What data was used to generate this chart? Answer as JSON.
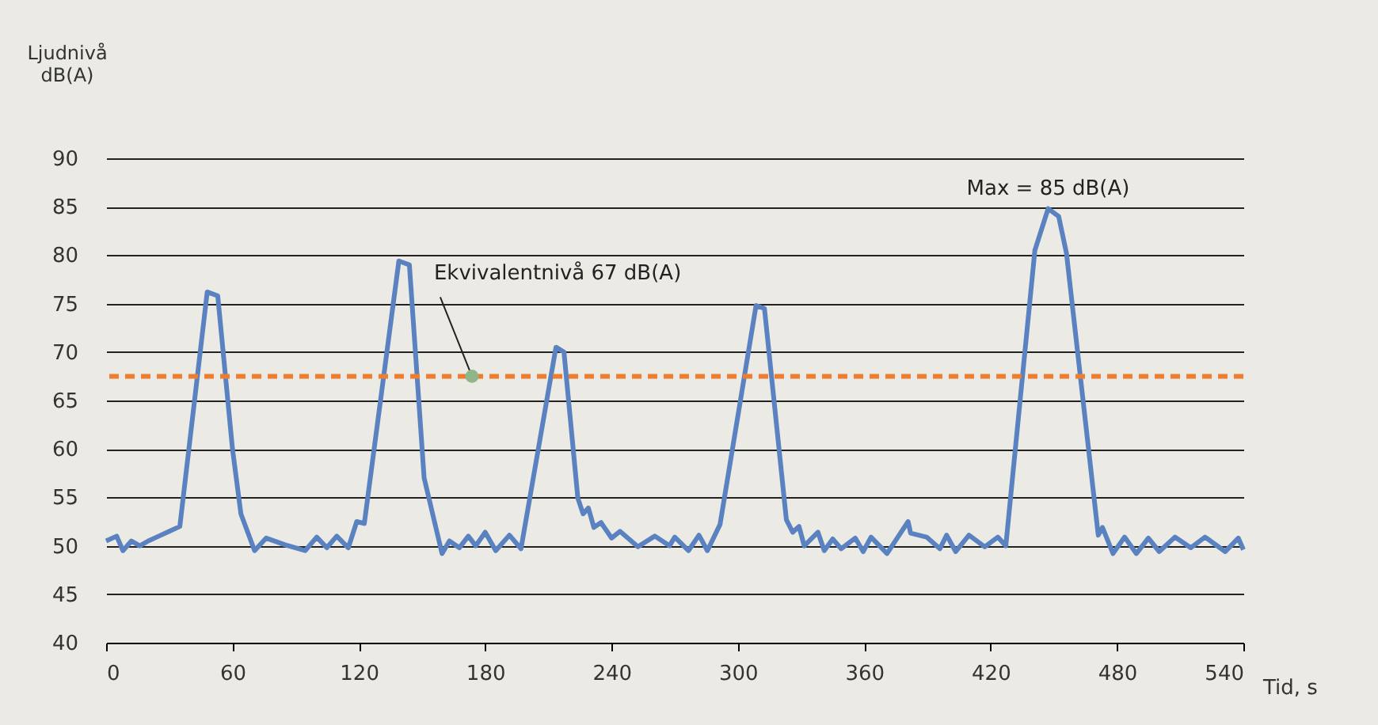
{
  "chart_data": {
    "type": "line",
    "ylabel": "Ljudnivå\ndB(A)",
    "xlabel": "Tid, s",
    "x": [
      0,
      5,
      8,
      12,
      16,
      20,
      25,
      30,
      35,
      48,
      53,
      60,
      64,
      70.5,
      76,
      85,
      94.5,
      100,
      104.8,
      109.5,
      115,
      119,
      122.6,
      139,
      144,
      151,
      159.5,
      163,
      167.7,
      172,
      175.5,
      180,
      185,
      191.5,
      197,
      213.6,
      217.4,
      224,
      226.5,
      229,
      231.6,
      235,
      240,
      244,
      252.5,
      260.5,
      267.5,
      270,
      276.5,
      281.5,
      285.5,
      291.5,
      308.6,
      312.6,
      323,
      326,
      329,
      331.5,
      338,
      341,
      345,
      349,
      355.7,
      359.5,
      363.2,
      370.8,
      380.8,
      382,
      389.6,
      395.9,
      399.1,
      403.4,
      409.7,
      417.2,
      423.4,
      427.2,
      441,
      447.3,
      452.3,
      456,
      471.1,
      473.1,
      478.1,
      483.6,
      489.2,
      494.9,
      500,
      507.5,
      515,
      521.8,
      531.4,
      537.6,
      540
    ],
    "series": [
      {
        "color": "#5b82c0",
        "values": [
          50.5,
          51,
          49.5,
          50.5,
          50,
          50.5,
          51,
          51.5,
          52,
          76.2,
          75.8,
          60,
          53.3,
          49.5,
          50.8,
          50.1,
          49.5,
          50.9,
          49.8,
          51,
          49.8,
          52.5,
          52.3,
          79.4,
          79,
          57,
          49.2,
          50.5,
          49.8,
          51,
          50,
          51.4,
          49.5,
          51.1,
          49.7,
          70.5,
          70,
          54.9,
          53.3,
          53.9,
          51.9,
          52.4,
          50.8,
          51.5,
          49.9,
          51,
          50,
          50.9,
          49.5,
          51.1,
          49.5,
          52.2,
          74.8,
          74.5,
          52.7,
          51.4,
          52,
          50,
          51.4,
          49.5,
          50.7,
          49.7,
          50.8,
          49.4,
          50.9,
          49.2,
          52.5,
          51.3,
          50.9,
          49.7,
          51.1,
          49.4,
          51.1,
          49.9,
          50.9,
          50,
          80.5,
          84.8,
          84,
          80.2,
          51.1,
          51.9,
          49.2,
          50.9,
          49.2,
          50.8,
          49.4,
          50.9,
          49.8,
          50.9,
          49.4,
          50.8,
          49.6
        ]
      }
    ],
    "xlim": [
      0,
      540
    ],
    "xticks": [
      0,
      60,
      120,
      180,
      240,
      300,
      360,
      420,
      480,
      540
    ],
    "ylim": [
      40,
      90
    ],
    "yticks": [
      40,
      45,
      50,
      55,
      60,
      65,
      70,
      75,
      80,
      85,
      90
    ],
    "grid": "y",
    "marker": "none",
    "line_style": "solid",
    "ref_lines": [
      {
        "axis": "y",
        "value": 67.5,
        "color": "#ed7d31",
        "line_style": "dashed"
      }
    ],
    "annotations": [
      {
        "text": "Ekvivalentnivå 67 dB(A)",
        "x": 173.7,
        "y": 67.5
      },
      {
        "text": "Max = 85 dB(A)",
        "x": 447.3,
        "y": 84.8
      }
    ]
  }
}
